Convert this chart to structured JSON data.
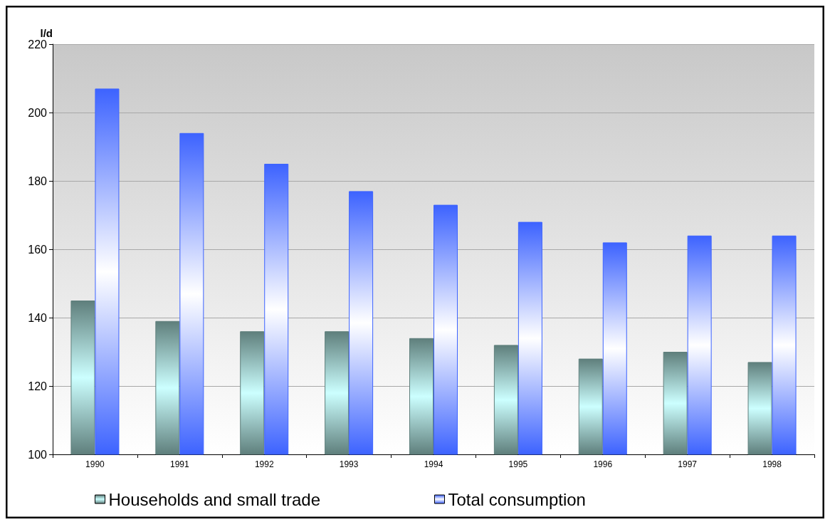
{
  "chart_data": {
    "type": "bar",
    "ylabel": "l/d",
    "categories": [
      "1990",
      "1991",
      "1992",
      "1993",
      "1994",
      "1995",
      "1996",
      "1997",
      "1998"
    ],
    "series": [
      {
        "name": "Households and small trade",
        "color": "#5f7f7c",
        "values": [
          145,
          139,
          136,
          136,
          134,
          132,
          128,
          130,
          127
        ]
      },
      {
        "name": "Total consumption",
        "color": "#3d63ff",
        "values": [
          207,
          194,
          185,
          177,
          173,
          168,
          162,
          164,
          164
        ]
      }
    ],
    "ylim": [
      100,
      220
    ],
    "yticks": [
      100,
      120,
      140,
      160,
      180,
      200,
      220
    ],
    "grid": "y",
    "legend": "bottom"
  }
}
